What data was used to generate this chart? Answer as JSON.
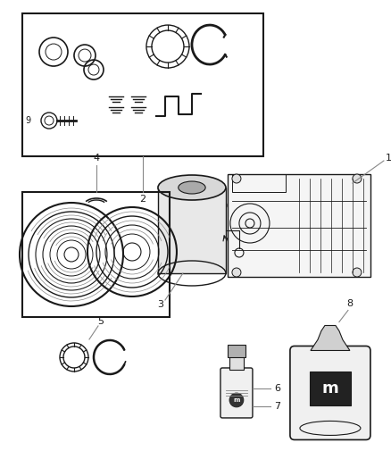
{
  "bg_color": "#ffffff",
  "line_color": "#1a1a1a",
  "gray_color": "#888888",
  "light_gray": "#cccccc",
  "fig_width": 4.38,
  "fig_height": 5.33,
  "dpi": 100
}
